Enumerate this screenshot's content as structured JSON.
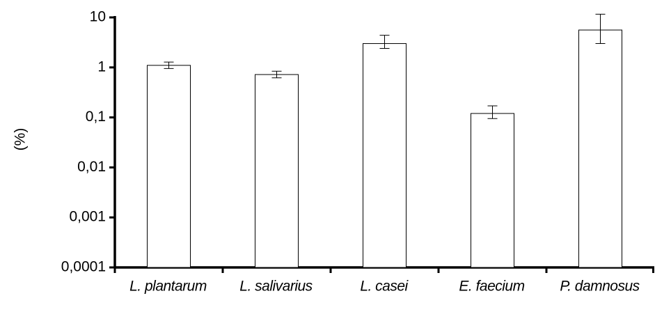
{
  "chart_data": {
    "type": "bar",
    "y_label": "(%)",
    "categories": [
      "L. plantarum",
      "L. salivarius",
      "L. casei",
      "E. faecium",
      "P. damnosus"
    ],
    "values": [
      1.1,
      0.72,
      3.0,
      0.12,
      5.6
    ],
    "error_minus": [
      0.15,
      0.1,
      0.6,
      0.025,
      2.6
    ],
    "error_plus": [
      0.18,
      0.12,
      1.4,
      0.05,
      6
    ],
    "ylim": [
      0.0001,
      10
    ],
    "yticks": [
      {
        "value": 0.0001,
        "label": "0,0001"
      },
      {
        "value": 0.001,
        "label": "0,001"
      },
      {
        "value": 0.01,
        "label": "0,01"
      },
      {
        "value": 0.1,
        "label": "0,1"
      },
      1,
      10
    ],
    "log_y": true,
    "color": "#ffffff",
    "edge_color": "#000000"
  }
}
